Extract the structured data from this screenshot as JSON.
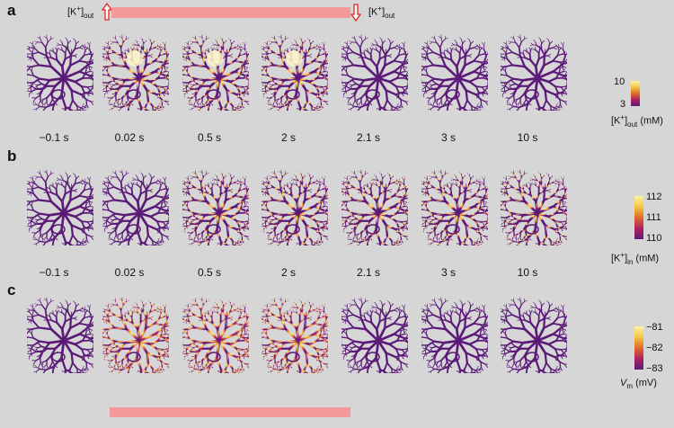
{
  "panels": [
    {
      "letter": "a",
      "times": [
        "−0.1 s",
        "0.02 s",
        "0.5 s",
        "2 s",
        "2.1 s",
        "3 s",
        "10 s"
      ],
      "colorbar": {
        "ticks": [
          "10",
          "3"
        ],
        "label_main": "[K",
        "label_sup": "+",
        "label_tail": "]",
        "label_sub": "out",
        "label_unit": " (mM)"
      }
    },
    {
      "letter": "b",
      "times": [
        "−0.1 s",
        "0.02 s",
        "0.5 s",
        "2 s",
        "2.1 s",
        "3 s",
        "10 s"
      ],
      "colorbar": {
        "ticks": [
          "112",
          "111",
          "110"
        ],
        "label_main": "[K",
        "label_sup": "+",
        "label_tail": "]",
        "label_sub": "in",
        "label_unit": " (mM)"
      }
    },
    {
      "letter": "c",
      "colorbar": {
        "ticks": [
          "−81",
          "−82",
          "−83"
        ],
        "label_main": "V",
        "label_sub": "m",
        "label_unit": " (mV)"
      }
    }
  ],
  "stimulus": {
    "left_main": "[K",
    "left_sup": "+",
    "left_tail": "]",
    "left_sub": "out",
    "right_main": "[K",
    "right_sup": "+",
    "right_tail": "]",
    "right_sub": "out"
  },
  "colors": {
    "bg": "#d6d6d6",
    "stim": "#f59a9a",
    "arrow": "#e0261f",
    "neuron_dark": "#5b1a78",
    "neuron_hot": "#f4c542",
    "neuron_warm": "#c2305c"
  }
}
